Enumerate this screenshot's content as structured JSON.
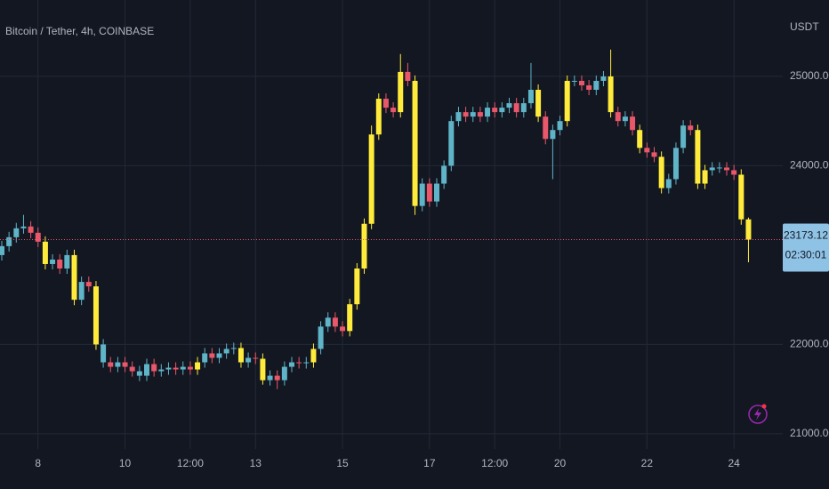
{
  "chart_data": {
    "type": "candlestick",
    "title": "Bitcoin / Tether, 4h, COINBASE",
    "y_axis_label": "USDT",
    "categories": [
      null,
      null,
      null,
      null,
      null,
      "8",
      null,
      null,
      null,
      null,
      null,
      null,
      null,
      null,
      null,
      null,
      null,
      "10",
      null,
      null,
      null,
      null,
      null,
      null,
      null,
      null,
      "12:00",
      null,
      null,
      null,
      null,
      null,
      null,
      null,
      null,
      "13",
      null,
      null,
      null,
      null,
      null,
      null,
      null,
      null,
      null,
      null,
      null,
      "15",
      null,
      null,
      null,
      null,
      null,
      null,
      null,
      null,
      null,
      null,
      null,
      "17",
      null,
      null,
      null,
      null,
      null,
      null,
      null,
      null,
      "12:00",
      null,
      null,
      null,
      null,
      null,
      null,
      null,
      null,
      "20",
      null,
      null,
      null,
      null,
      null,
      null,
      null,
      null,
      null,
      null,
      null,
      "22",
      null,
      null,
      null,
      null,
      null,
      null,
      null,
      null,
      null,
      null,
      null,
      "24",
      null,
      null
    ],
    "open": [
      23000,
      23100,
      23200,
      23300,
      23320,
      23250,
      23150,
      22900,
      22950,
      22850,
      23000,
      22500,
      22700,
      22650,
      22000,
      21800,
      21750,
      21800,
      21750,
      21700,
      21650,
      21780,
      21700,
      21720,
      21740,
      21720,
      21750,
      21720,
      21800,
      21900,
      21850,
      21900,
      21950,
      21960,
      21800,
      21850,
      21840,
      21600,
      21650,
      21600,
      21750,
      21800,
      21790,
      21800,
      21950,
      22200,
      22300,
      22200,
      22150,
      22450,
      22850,
      23350,
      24350,
      24750,
      24650,
      24600,
      25050,
      24950,
      23550,
      23800,
      23600,
      23800,
      24000,
      24500,
      24600,
      24550,
      24600,
      24550,
      24650,
      24600,
      24650,
      24700,
      24600,
      24700,
      24850,
      24550,
      24300,
      24400,
      24500,
      24950,
      24950,
      24900,
      24850,
      24950,
      25000,
      24600,
      24500,
      24550,
      24400,
      24200,
      24150,
      24100,
      23750,
      23850,
      24200,
      24450,
      24400,
      23800,
      23950,
      23980,
      23980,
      23950,
      23900,
      23400
    ],
    "high": [
      23160,
      23260,
      23360,
      23450,
      23380,
      23310,
      23210,
      23010,
      23010,
      23060,
      23060,
      22760,
      22760,
      22710,
      22060,
      21860,
      21860,
      21860,
      21810,
      21760,
      21840,
      21840,
      21780,
      21800,
      21800,
      21810,
      21810,
      21860,
      21960,
      21960,
      21960,
      22010,
      22020,
      22020,
      21910,
      21910,
      21900,
      21710,
      21710,
      21810,
      21860,
      21860,
      21860,
      22010,
      22260,
      22360,
      22360,
      22260,
      22510,
      22910,
      23410,
      24450,
      24810,
      24810,
      24710,
      25250,
      25150,
      25010,
      23860,
      23860,
      23860,
      24060,
      24560,
      24660,
      24660,
      24660,
      24660,
      24710,
      24710,
      24710,
      24760,
      24760,
      24760,
      25150,
      24910,
      24610,
      24460,
      24560,
      25010,
      25010,
      25010,
      24960,
      25010,
      25060,
      25300,
      24660,
      24610,
      24610,
      24460,
      24260,
      24210,
      24160,
      23910,
      24260,
      24510,
      24510,
      24460,
      24010,
      24040,
      24040,
      24040,
      24010,
      23960,
      23420
    ],
    "low": [
      22940,
      23040,
      23140,
      23240,
      23190,
      23090,
      22840,
      22840,
      22790,
      22790,
      22440,
      22440,
      22590,
      21940,
      21740,
      21690,
      21690,
      21690,
      21640,
      21590,
      21590,
      21640,
      21640,
      21660,
      21660,
      21660,
      21660,
      21660,
      21740,
      21790,
      21790,
      21840,
      21890,
      21740,
      21740,
      21780,
      21550,
      21540,
      21500,
      21540,
      21690,
      21730,
      21730,
      21740,
      21890,
      22140,
      22140,
      22090,
      22090,
      22390,
      22790,
      23290,
      24290,
      24590,
      24540,
      24540,
      24890,
      23450,
      23490,
      23540,
      23540,
      23740,
      23940,
      24440,
      24490,
      24490,
      24490,
      24490,
      24540,
      24540,
      24590,
      24540,
      24540,
      24640,
      24490,
      24240,
      23850,
      24340,
      24440,
      24890,
      24840,
      24790,
      24790,
      24890,
      24540,
      24440,
      24440,
      24340,
      24140,
      24090,
      24040,
      23690,
      23690,
      23790,
      24140,
      24340,
      23740,
      23740,
      23890,
      23920,
      23890,
      23840,
      23340,
      22920
    ],
    "close": [
      23100,
      23200,
      23300,
      23320,
      23250,
      23150,
      22900,
      22950,
      22850,
      23000,
      22500,
      22700,
      22650,
      22000,
      21800,
      21750,
      21800,
      21750,
      21700,
      21650,
      21780,
      21700,
      21720,
      21740,
      21720,
      21750,
      21720,
      21800,
      21900,
      21850,
      21900,
      21950,
      21960,
      21800,
      21850,
      21840,
      21600,
      21650,
      21600,
      21750,
      21800,
      21790,
      21800,
      21950,
      22200,
      22300,
      22200,
      22150,
      22450,
      22850,
      23350,
      24350,
      24750,
      24650,
      24600,
      25050,
      24950,
      23550,
      23800,
      23600,
      23800,
      24000,
      24500,
      24600,
      24550,
      24600,
      24550,
      24650,
      24600,
      24650,
      24700,
      24600,
      24700,
      24850,
      24550,
      24300,
      24400,
      24500,
      24950,
      24950,
      24900,
      24850,
      24950,
      25000,
      24600,
      24500,
      24550,
      24400,
      24200,
      24150,
      24100,
      23750,
      23850,
      24200,
      24450,
      24400,
      23800,
      23950,
      23980,
      23980,
      23950,
      23900,
      23400,
      23173.12
    ],
    "colors": [
      "#5fb4c8",
      "#5fb4c8",
      "#5fb4c8",
      "#5fb4c8",
      "#e8576a",
      "#e8576a",
      "#ffeb3b",
      "#5fb4c8",
      "#e8576a",
      "#5fb4c8",
      "#ffeb3b",
      "#5fb4c8",
      "#e8576a",
      "#ffeb3b",
      "#5fb4c8",
      "#e8576a",
      "#5fb4c8",
      "#e8576a",
      "#e8576a",
      "#5fb4c8",
      "#5fb4c8",
      "#e8576a",
      "#5fb4c8",
      "#5fb4c8",
      "#e8576a",
      "#5fb4c8",
      "#e8576a",
      "#ffeb3b",
      "#5fb4c8",
      "#e8576a",
      "#5fb4c8",
      "#5fb4c8",
      "#5fb4c8",
      "#ffeb3b",
      "#5fb4c8",
      "#e8576a",
      "#ffeb3b",
      "#5fb4c8",
      "#e8576a",
      "#5fb4c8",
      "#5fb4c8",
      "#e8576a",
      "#5fb4c8",
      "#ffeb3b",
      "#5fb4c8",
      "#5fb4c8",
      "#e8576a",
      "#e8576a",
      "#ffeb3b",
      "#ffeb3b",
      "#ffeb3b",
      "#ffeb3b",
      "#ffeb3b",
      "#e8576a",
      "#e8576a",
      "#ffeb3b",
      "#e8576a",
      "#ffeb3b",
      "#5fb4c8",
      "#e8576a",
      "#5fb4c8",
      "#5fb4c8",
      "#5fb4c8",
      "#5fb4c8",
      "#e8576a",
      "#5fb4c8",
      "#e8576a",
      "#5fb4c8",
      "#e8576a",
      "#5fb4c8",
      "#5fb4c8",
      "#e8576a",
      "#5fb4c8",
      "#5fb4c8",
      "#ffeb3b",
      "#e8576a",
      "#5fb4c8",
      "#5fb4c8",
      "#ffeb3b",
      "#5fb4c8",
      "#e8576a",
      "#e8576a",
      "#5fb4c8",
      "#5fb4c8",
      "#ffeb3b",
      "#e8576a",
      "#5fb4c8",
      "#e8576a",
      "#ffeb3b",
      "#e8576a",
      "#e8576a",
      "#ffeb3b",
      "#5fb4c8",
      "#5fb4c8",
      "#5fb4c8",
      "#e8576a",
      "#ffeb3b",
      "#ffeb3b",
      "#5fb4c8",
      "#5fb4c8",
      "#e8576a",
      "#e8576a",
      "#ffeb3b",
      "#ffeb3b"
    ],
    "ylim": [
      20830,
      25855
    ],
    "yticks": [
      {
        "value": 21000,
        "label": "21000.00"
      },
      {
        "value": 22000,
        "label": "22000.00"
      },
      {
        "value": 24000,
        "label": "24000.00"
      },
      {
        "value": 25000,
        "label": "25000.00"
      }
    ],
    "grid": true,
    "last_price": 23173.12,
    "last_price_color": "#e8576a",
    "countdown": "02:30:01"
  }
}
